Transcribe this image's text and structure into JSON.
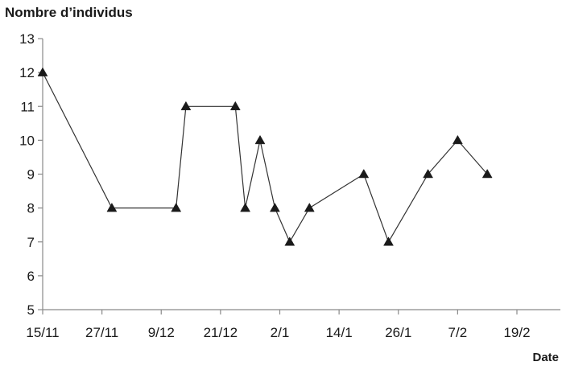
{
  "chart_data": {
    "type": "line",
    "title": "",
    "ylabel": "Nombre d’individus",
    "xlabel": "Date",
    "ylim": [
      5,
      13
    ],
    "yticks": [
      5,
      6,
      7,
      8,
      9,
      10,
      11,
      12,
      13
    ],
    "xlim_days": [
      0,
      96
    ],
    "xticks": [
      {
        "label": "15/11",
        "day": 0
      },
      {
        "label": "27/11",
        "day": 12
      },
      {
        "label": "9/12",
        "day": 24
      },
      {
        "label": "21/12",
        "day": 36
      },
      {
        "label": "2/1",
        "day": 48
      },
      {
        "label": "14/1",
        "day": 60
      },
      {
        "label": "26/1",
        "day": 72
      },
      {
        "label": "7/2",
        "day": 84
      },
      {
        "label": "19/2",
        "day": 96
      }
    ],
    "grid": false,
    "marker": "triangle",
    "color": "#1a1a1a",
    "series": [
      {
        "points": [
          {
            "date": "15/11",
            "day": 0,
            "value": 12
          },
          {
            "date": "29/11",
            "day": 14,
            "value": 8
          },
          {
            "date": "12/12",
            "day": 27,
            "value": 8
          },
          {
            "date": "14/12",
            "day": 29,
            "value": 11
          },
          {
            "date": "24/12",
            "day": 39,
            "value": 11
          },
          {
            "date": "26/12",
            "day": 41,
            "value": 8
          },
          {
            "date": "29/12",
            "day": 44,
            "value": 10
          },
          {
            "date": "1/1",
            "day": 47,
            "value": 8
          },
          {
            "date": "4/1",
            "day": 50,
            "value": 7
          },
          {
            "date": "8/1",
            "day": 54,
            "value": 8
          },
          {
            "date": "19/1",
            "day": 65,
            "value": 9
          },
          {
            "date": "24/1",
            "day": 70,
            "value": 7
          },
          {
            "date": "1/2",
            "day": 78,
            "value": 9
          },
          {
            "date": "7/2",
            "day": 84,
            "value": 10
          },
          {
            "date": "13/2",
            "day": 90,
            "value": 9
          }
        ]
      }
    ]
  }
}
